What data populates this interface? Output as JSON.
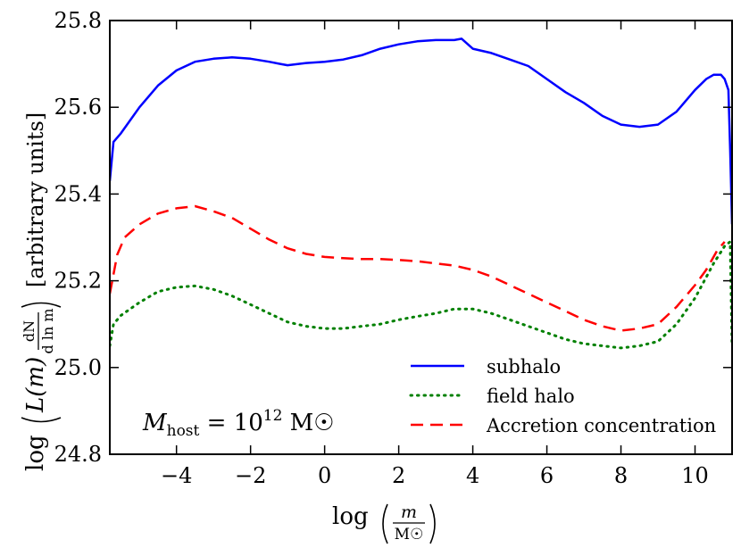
{
  "chart_data": {
    "type": "line",
    "title": "",
    "xlabel": "log (m / M☉)",
    "ylabel": "log ( L(m) dN/dln m ) [arbitrary units]",
    "xlim": [
      -5.8,
      11.0
    ],
    "ylim": [
      24.8,
      25.8
    ],
    "x_ticks": [
      -4,
      -2,
      0,
      2,
      4,
      6,
      8,
      10
    ],
    "x_tick_labels": [
      "−4",
      "−2",
      "0",
      "2",
      "4",
      "6",
      "8",
      "10"
    ],
    "y_ticks": [
      24.8,
      25.0,
      25.2,
      25.4,
      25.6,
      25.8
    ],
    "y_tick_labels": [
      "24.8",
      "25.0",
      "25.2",
      "25.4",
      "25.6",
      "25.8"
    ],
    "annotation": {
      "text_main": "M",
      "text_sub": "host",
      "text_rest": " = 10",
      "text_sup": "12",
      "text_unit": " M☉"
    },
    "xlabel_parts": {
      "log": "log",
      "num": "m",
      "den": "M☉"
    },
    "ylabel_parts": {
      "log": "log",
      "L": "L(m)",
      "num": "dN",
      "den": "d ln m",
      "units": "[arbitrary units]"
    },
    "legend": {
      "position": "lower right"
    },
    "series": [
      {
        "name": "subhalo",
        "color": "#0000ff",
        "style": "solid",
        "x": [
          -5.8,
          -5.7,
          -5.5,
          -5.0,
          -4.5,
          -4.0,
          -3.5,
          -3.0,
          -2.5,
          -2.0,
          -1.5,
          -1.2,
          -1.0,
          -0.5,
          0.0,
          0.5,
          1.0,
          1.5,
          2.0,
          2.5,
          3.0,
          3.5,
          3.7,
          4.0,
          4.5,
          5.0,
          5.5,
          6.0,
          6.5,
          7.0,
          7.5,
          8.0,
          8.5,
          9.0,
          9.5,
          10.0,
          10.3,
          10.5,
          10.7,
          10.8,
          10.9,
          10.95,
          11.0
        ],
        "values": [
          25.43,
          25.52,
          25.54,
          25.6,
          25.65,
          25.685,
          25.705,
          25.712,
          25.715,
          25.712,
          25.705,
          25.7,
          25.697,
          25.702,
          25.705,
          25.71,
          25.72,
          25.735,
          25.745,
          25.752,
          25.755,
          25.755,
          25.758,
          25.735,
          25.725,
          25.71,
          25.695,
          25.665,
          25.635,
          25.61,
          25.58,
          25.56,
          25.555,
          25.56,
          25.59,
          25.64,
          25.665,
          25.675,
          25.675,
          25.665,
          25.64,
          25.5,
          25.33
        ]
      },
      {
        "name": "field halo",
        "color": "#008000",
        "style": "dotted",
        "x": [
          -5.8,
          -5.7,
          -5.5,
          -5.0,
          -4.5,
          -4.0,
          -3.5,
          -3.0,
          -2.5,
          -2.0,
          -1.5,
          -1.0,
          -0.5,
          0.0,
          0.5,
          1.0,
          1.5,
          2.0,
          2.5,
          3.0,
          3.5,
          4.0,
          4.5,
          5.0,
          5.5,
          6.0,
          6.5,
          7.0,
          7.5,
          8.0,
          8.5,
          9.0,
          9.5,
          10.0,
          10.5,
          10.8,
          10.95,
          11.0
        ],
        "values": [
          25.05,
          25.1,
          25.12,
          25.15,
          25.175,
          25.185,
          25.188,
          25.18,
          25.165,
          25.145,
          25.125,
          25.105,
          25.095,
          25.09,
          25.09,
          25.095,
          25.1,
          25.11,
          25.118,
          25.125,
          25.135,
          25.135,
          25.125,
          25.11,
          25.095,
          25.08,
          25.065,
          25.055,
          25.05,
          25.045,
          25.05,
          25.06,
          25.1,
          25.16,
          25.24,
          25.28,
          25.29,
          25.05
        ]
      },
      {
        "name": "Accretion concentration",
        "color": "#ff0000",
        "style": "dashed",
        "x": [
          -5.8,
          -5.6,
          -5.4,
          -5.0,
          -4.5,
          -4.0,
          -3.5,
          -3.0,
          -2.5,
          -2.0,
          -1.5,
          -1.0,
          -0.5,
          0.0,
          0.5,
          1.0,
          1.5,
          2.0,
          2.5,
          3.0,
          3.5,
          4.0,
          4.5,
          5.0,
          5.5,
          6.0,
          6.5,
          7.0,
          7.5,
          8.0,
          8.5,
          9.0,
          9.5,
          10.0,
          10.3,
          10.6,
          10.8
        ],
        "values": [
          25.17,
          25.26,
          25.3,
          25.33,
          25.355,
          25.367,
          25.372,
          25.36,
          25.345,
          25.32,
          25.295,
          25.275,
          25.262,
          25.255,
          25.252,
          25.25,
          25.25,
          25.248,
          25.245,
          25.24,
          25.235,
          25.225,
          25.21,
          25.19,
          25.17,
          25.15,
          25.13,
          25.11,
          25.095,
          25.085,
          25.09,
          25.1,
          25.14,
          25.19,
          25.225,
          25.27,
          25.29
        ]
      }
    ]
  }
}
